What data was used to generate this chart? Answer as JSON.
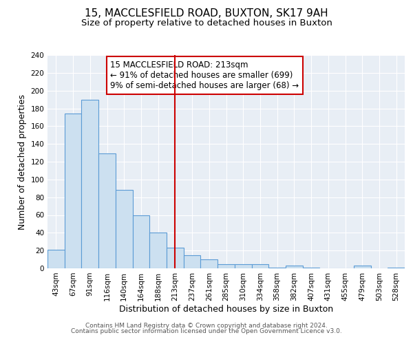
{
  "title": "15, MACCLESFIELD ROAD, BUXTON, SK17 9AH",
  "subtitle": "Size of property relative to detached houses in Buxton",
  "xlabel": "Distribution of detached houses by size in Buxton",
  "ylabel": "Number of detached properties",
  "bin_labels": [
    "43sqm",
    "67sqm",
    "91sqm",
    "116sqm",
    "140sqm",
    "164sqm",
    "188sqm",
    "213sqm",
    "237sqm",
    "261sqm",
    "285sqm",
    "310sqm",
    "334sqm",
    "358sqm",
    "382sqm",
    "407sqm",
    "431sqm",
    "455sqm",
    "479sqm",
    "503sqm",
    "528sqm"
  ],
  "bar_heights": [
    21,
    174,
    190,
    129,
    88,
    60,
    40,
    23,
    15,
    10,
    5,
    5,
    5,
    1,
    3,
    1,
    0,
    0,
    3,
    0,
    1
  ],
  "marker_index": 7,
  "bar_color": "#cce0f0",
  "bar_edge_color": "#5b9bd5",
  "marker_line_color": "#cc0000",
  "annotation_text": "15 MACCLESFIELD ROAD: 213sqm\n← 91% of detached houses are smaller (699)\n9% of semi-detached houses are larger (68) →",
  "annotation_box_edge": "#cc0000",
  "ylim": [
    0,
    240
  ],
  "yticks": [
    0,
    20,
    40,
    60,
    80,
    100,
    120,
    140,
    160,
    180,
    200,
    220,
    240
  ],
  "footnote1": "Contains HM Land Registry data © Crown copyright and database right 2024.",
  "footnote2": "Contains public sector information licensed under the Open Government Licence v3.0.",
  "fig_bg_color": "#ffffff",
  "plot_bg_color": "#e8eef5",
  "grid_color": "#ffffff",
  "title_fontsize": 11,
  "subtitle_fontsize": 9.5,
  "label_fontsize": 9,
  "tick_fontsize": 7.5,
  "annotation_fontsize": 8.5,
  "footnote_fontsize": 6.5
}
